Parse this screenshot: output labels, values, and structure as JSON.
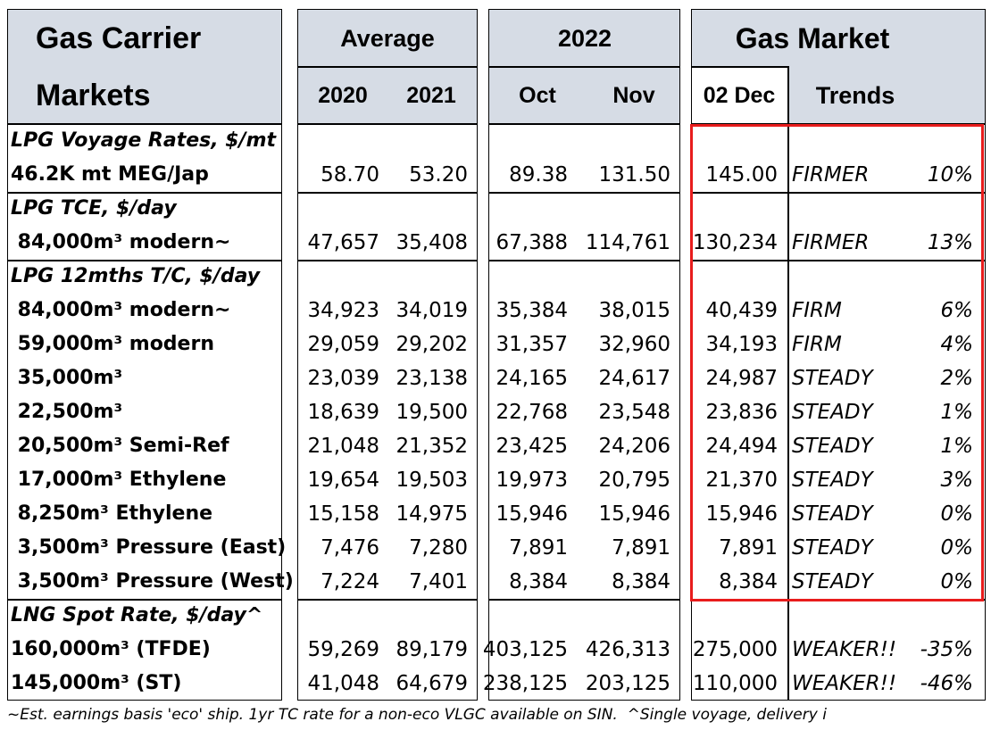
{
  "header": {
    "title_line1": "Gas Carrier",
    "title_line2": "Markets",
    "average": "Average",
    "year_2020": "2020",
    "year_2021": "2021",
    "year_2022": "2022",
    "oct": "Oct",
    "nov": "Nov",
    "gas_market": "Gas Market",
    "dec": "02 Dec",
    "trends": "Trends"
  },
  "groups": [
    {
      "title": "LPG Voyage Rates, $/mt",
      "rows": [
        {
          "label": "46.2K mt MEG/Jap",
          "values": [
            "58.70",
            "53.20",
            "89.38",
            "131.50",
            "145.00"
          ],
          "trend": "FIRMER",
          "change": "10%"
        }
      ]
    },
    {
      "title": "LPG TCE, $/day",
      "rows": [
        {
          "label": " 84,000m³ modern~",
          "values": [
            "47,657",
            "35,408",
            "67,388",
            "114,761",
            "130,234"
          ],
          "trend": "FIRMER",
          "change": "13%"
        }
      ]
    },
    {
      "title": "LPG 12mths T/C, $/day",
      "rows": [
        {
          "label": " 84,000m³ modern~",
          "values": [
            "34,923",
            "34,019",
            "35,384",
            "38,015",
            "40,439"
          ],
          "trend": "FIRM",
          "change": "6%"
        },
        {
          "label": " 59,000m³ modern",
          "values": [
            "29,059",
            "29,202",
            "31,357",
            "32,960",
            "34,193"
          ],
          "trend": "FIRM",
          "change": "4%"
        },
        {
          "label": " 35,000m³",
          "values": [
            "23,039",
            "23,138",
            "24,165",
            "24,617",
            "24,987"
          ],
          "trend": "STEADY",
          "change": "2%"
        },
        {
          "label": " 22,500m³",
          "values": [
            "18,639",
            "19,500",
            "22,768",
            "23,548",
            "23,836"
          ],
          "trend": "STEADY",
          "change": "1%"
        },
        {
          "label": " 20,500m³ Semi-Ref",
          "values": [
            "21,048",
            "21,352",
            "23,425",
            "24,206",
            "24,494"
          ],
          "trend": "STEADY",
          "change": "1%"
        },
        {
          "label": " 17,000m³ Ethylene",
          "values": [
            "19,654",
            "19,503",
            "19,973",
            "20,795",
            "21,370"
          ],
          "trend": "STEADY",
          "change": "3%"
        },
        {
          "label": " 8,250m³ Ethylene",
          "values": [
            "15,158",
            "14,975",
            "15,946",
            "15,946",
            "15,946"
          ],
          "trend": "STEADY",
          "change": "0%"
        },
        {
          "label": " 3,500m³ Pressure (East)",
          "values": [
            "7,476",
            "7,280",
            "7,891",
            "7,891",
            "7,891"
          ],
          "trend": "STEADY",
          "change": "0%"
        },
        {
          "label": " 3,500m³ Pressure (West)",
          "values": [
            "7,224",
            "7,401",
            "8,384",
            "8,384",
            "8,384"
          ],
          "trend": "STEADY",
          "change": "0%"
        }
      ]
    },
    {
      "title": "LNG Spot Rate, $/day^",
      "rows": [
        {
          "label": "160,000m³ (TFDE)",
          "values": [
            "59,269",
            "89,179",
            "403,125",
            "426,313",
            "275,000"
          ],
          "trend": "WEAKER!!",
          "change": "-35%"
        },
        {
          "label": "145,000m³ (ST)",
          "values": [
            "41,048",
            "64,679",
            "238,125",
            "203,125",
            "110,000"
          ],
          "trend": "WEAKER!!",
          "change": "-46%"
        }
      ]
    }
  ],
  "footer": "~Est. earnings basis 'eco' ship. 1yr TC rate for a non-eco VLGC available on SIN.  ^Single voyage, delivery i"
}
